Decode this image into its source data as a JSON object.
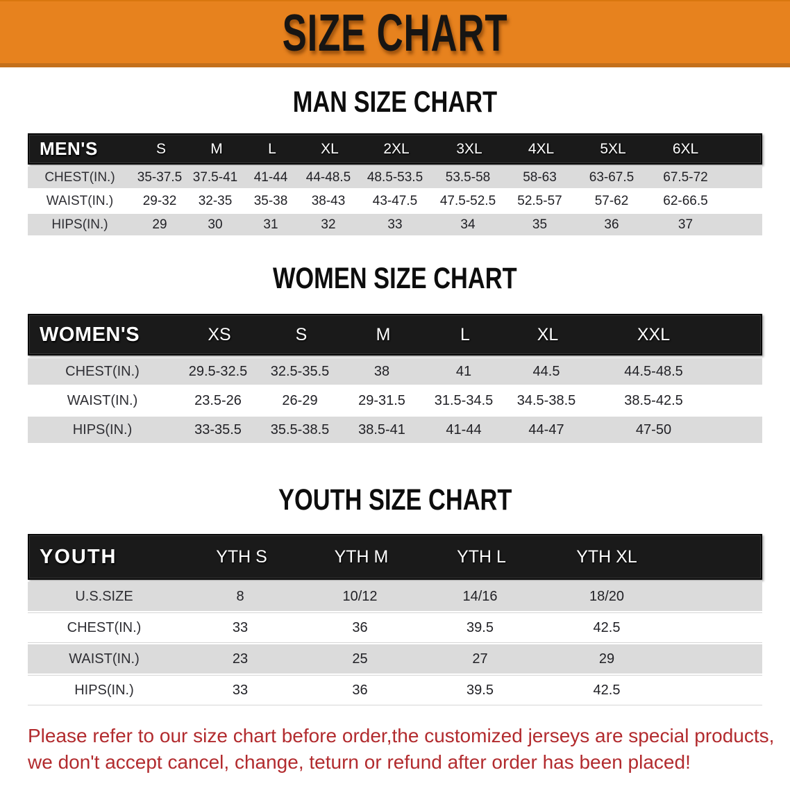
{
  "banner": {
    "title": "SIZE CHART"
  },
  "colors": {
    "banner_bg": "#E7821E",
    "banner_border": "#C4701B",
    "table_header_bg": "#1A1A1A",
    "stripe_gray": "#DBDBDB",
    "disclaimer_red": "#B22B2E"
  },
  "chart_data": [
    {
      "type": "table",
      "title": "MAN SIZE CHART",
      "header_label": "MEN'S",
      "columns": [
        "S",
        "M",
        "L",
        "XL",
        "2XL",
        "3XL",
        "4XL",
        "5XL",
        "6XL"
      ],
      "rows": [
        {
          "label": "CHEST(IN.)",
          "values": [
            "35-37.5",
            "37.5-41",
            "41-44",
            "44-48.5",
            "48.5-53.5",
            "53.5-58",
            "58-63",
            "63-67.5",
            "67.5-72"
          ]
        },
        {
          "label": "WAIST(IN.)",
          "values": [
            "29-32",
            "32-35",
            "35-38",
            "38-43",
            "43-47.5",
            "47.5-52.5",
            "52.5-57",
            "57-62",
            "62-66.5"
          ]
        },
        {
          "label": "HIPS(IN.)",
          "values": [
            "29",
            "30",
            "31",
            "32",
            "33",
            "34",
            "35",
            "36",
            "37"
          ]
        }
      ]
    },
    {
      "type": "table",
      "title": "WOMEN SIZE CHART",
      "header_label": "WOMEN'S",
      "columns": [
        "XS",
        "S",
        "M",
        "L",
        "XL",
        "XXL"
      ],
      "rows": [
        {
          "label": "CHEST(IN.)",
          "values": [
            "29.5-32.5",
            "32.5-35.5",
            "38",
            "41",
            "44.5",
            "44.5-48.5"
          ]
        },
        {
          "label": "WAIST(IN.)",
          "values": [
            "23.5-26",
            "26-29",
            "29-31.5",
            "31.5-34.5",
            "34.5-38.5",
            "38.5-42.5"
          ]
        },
        {
          "label": "HIPS(IN.)",
          "values": [
            "33-35.5",
            "35.5-38.5",
            "38.5-41",
            "41-44",
            "44-47",
            "47-50"
          ]
        }
      ]
    },
    {
      "type": "table",
      "title": "YOUTH SIZE CHART",
      "header_label": "YOUTH",
      "columns": [
        "YTH S",
        "YTH M",
        "YTH L",
        "YTH XL"
      ],
      "rows": [
        {
          "label": "U.S.SIZE",
          "values": [
            "8",
            "10/12",
            "14/16",
            "18/20"
          ]
        },
        {
          "label": "CHEST(IN.)",
          "values": [
            "33",
            "36",
            "39.5",
            "42.5"
          ]
        },
        {
          "label": "WAIST(IN.)",
          "values": [
            "23",
            "25",
            "27",
            "29"
          ]
        },
        {
          "label": "HIPS(IN.)",
          "values": [
            "33",
            "36",
            "39.5",
            "42.5"
          ]
        }
      ]
    }
  ],
  "disclaimer": {
    "line1": "Please refer to our size chart before order,the customized jerseys are special products,",
    "line2": "we don't accept cancel, change, teturn or refund after order has been placed!"
  }
}
